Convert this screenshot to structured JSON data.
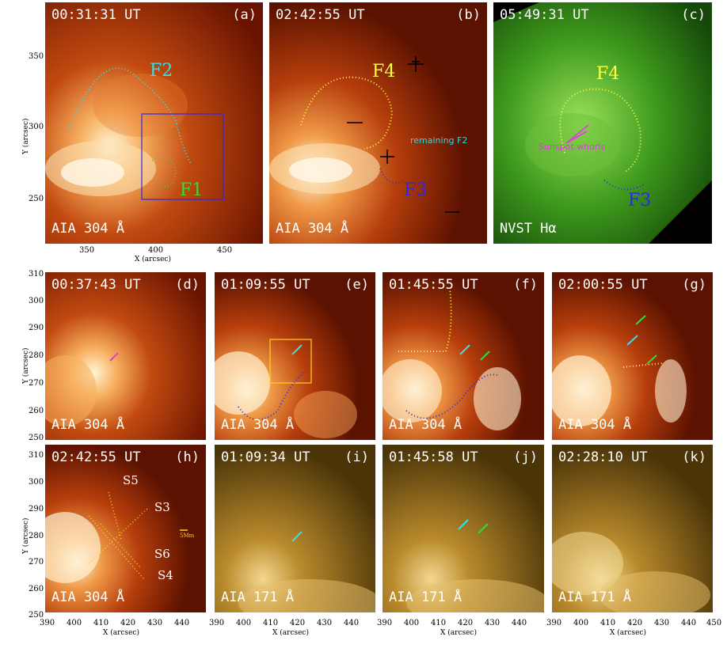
{
  "panels": {
    "a": {
      "time": "00:31:31 UT",
      "tag": "(a)",
      "instrument": "AIA 304 Å",
      "labels": {
        "F2": "F2",
        "F1": "F1"
      }
    },
    "b": {
      "time": "02:42:55 UT",
      "tag": "(b)",
      "instrument": "AIA 304 Å",
      "labels": {
        "F4": "F4",
        "F3": "F3",
        "remaining": "remaining F2"
      }
    },
    "c": {
      "time": "05:49:31 UT",
      "tag": "(c)",
      "instrument": "NVST Hα",
      "labels": {
        "F4": "F4",
        "F3": "F3",
        "whorls": "Sunspot whorls"
      }
    },
    "d": {
      "time": "00:37:43 UT",
      "tag": "(d)",
      "instrument": "AIA 304 Å"
    },
    "e": {
      "time": "01:09:55 UT",
      "tag": "(e)",
      "instrument": "AIA 304 Å"
    },
    "f": {
      "time": "01:45:55 UT",
      "tag": "(f)",
      "instrument": "AIA 304 Å"
    },
    "g": {
      "time": "02:00:55 UT",
      "tag": "(g)",
      "instrument": "AIA 304 Å"
    },
    "h": {
      "time": "02:42:55 UT",
      "tag": "(h)",
      "instrument": "AIA 304 Å",
      "labels": {
        "S5": "S5",
        "S3": "S3",
        "S6": "S6",
        "S4": "S4",
        "scale": "5Mm"
      }
    },
    "i": {
      "time": "01:09:34 UT",
      "tag": "(i)",
      "instrument": "AIA 171 Å"
    },
    "j": {
      "time": "01:45:58 UT",
      "tag": "(j)",
      "instrument": "AIA 171 Å"
    },
    "k": {
      "time": "02:28:10 UT",
      "tag": "(k)",
      "instrument": "AIA 171 Å"
    }
  },
  "axes": {
    "top_y_label": "Y (arcsec)",
    "top_x_label": "X (arcsec)",
    "top_y_ticks": [
      "350",
      "300",
      "250"
    ],
    "top_x_ticks": [
      "350",
      "400",
      "450"
    ],
    "mid_y_ticks": [
      "310",
      "300",
      "290",
      "280",
      "270",
      "260",
      "250"
    ],
    "bot_y_ticks": [
      "310",
      "300",
      "290",
      "280",
      "270",
      "260",
      "250"
    ],
    "bot_x_ticks": [
      "390",
      "400",
      "410",
      "420",
      "430",
      "440"
    ],
    "bot_x_ticks_last": [
      "390",
      "400",
      "410",
      "420",
      "430",
      "440",
      "450"
    ]
  },
  "colors": {
    "aia304": "#c24a10",
    "aia171": "#a7781c",
    "nvst": "#2f8a18"
  }
}
